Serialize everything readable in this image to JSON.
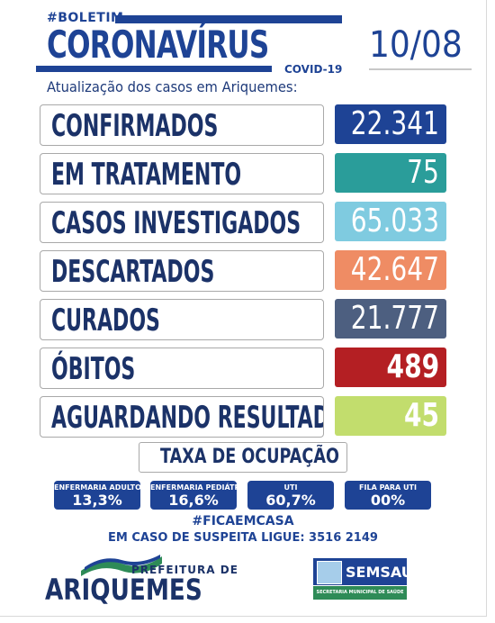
{
  "header": {
    "hashtag": "#BOLETIM",
    "title": "CORONAVÍRUS",
    "covid_label": "COVID-19",
    "date": "10/08",
    "subtitle": "Atualização dos casos em Ariquemes:"
  },
  "rows": [
    {
      "label": "CONFIRMADOS",
      "value": "22.341",
      "color": "#1e4395",
      "bold": false
    },
    {
      "label": "EM TRATAMENTO",
      "value": "75",
      "color": "#2a9d9a",
      "bold": false
    },
    {
      "label": "CASOS INVESTIGADOS",
      "value": "65.033",
      "color": "#7fcbe0",
      "bold": false
    },
    {
      "label": "DESCARTADOS",
      "value": "42.647",
      "color": "#ef8c64",
      "bold": false
    },
    {
      "label": "CURADOS",
      "value": "21.777",
      "color": "#4d5f80",
      "bold": false
    },
    {
      "label": "ÓBITOS",
      "value": "489",
      "color": "#b41f23",
      "bold": true
    },
    {
      "label": "AGUARDANDO RESULTADO",
      "value": "45",
      "color": "#c2dd6d",
      "bold": true
    }
  ],
  "occupancy": {
    "title": "TAXA DE OCUPAÇÃO",
    "items": [
      {
        "label": "ENFERMARIA ADULTO",
        "value": "13,3%"
      },
      {
        "label": "ENFERMARIA PEDIÁTRICA",
        "value": "16,6%"
      },
      {
        "label": "UTI",
        "value": "60,7%"
      },
      {
        "label": "FILA PARA UTI",
        "value": "00%"
      }
    ]
  },
  "footer": {
    "hashtag": "#FICAEMCASA",
    "phone_text": "EM CASO DE SUSPEITA LIGUE: 3516 2149",
    "prefeitura_small": "PREFEITURA DE",
    "prefeitura_big": "ARIQUEMES",
    "semsau": "SEMSAU",
    "semsau_sub": "SECRETARIA MUNICIPAL DE SAÚDE"
  }
}
